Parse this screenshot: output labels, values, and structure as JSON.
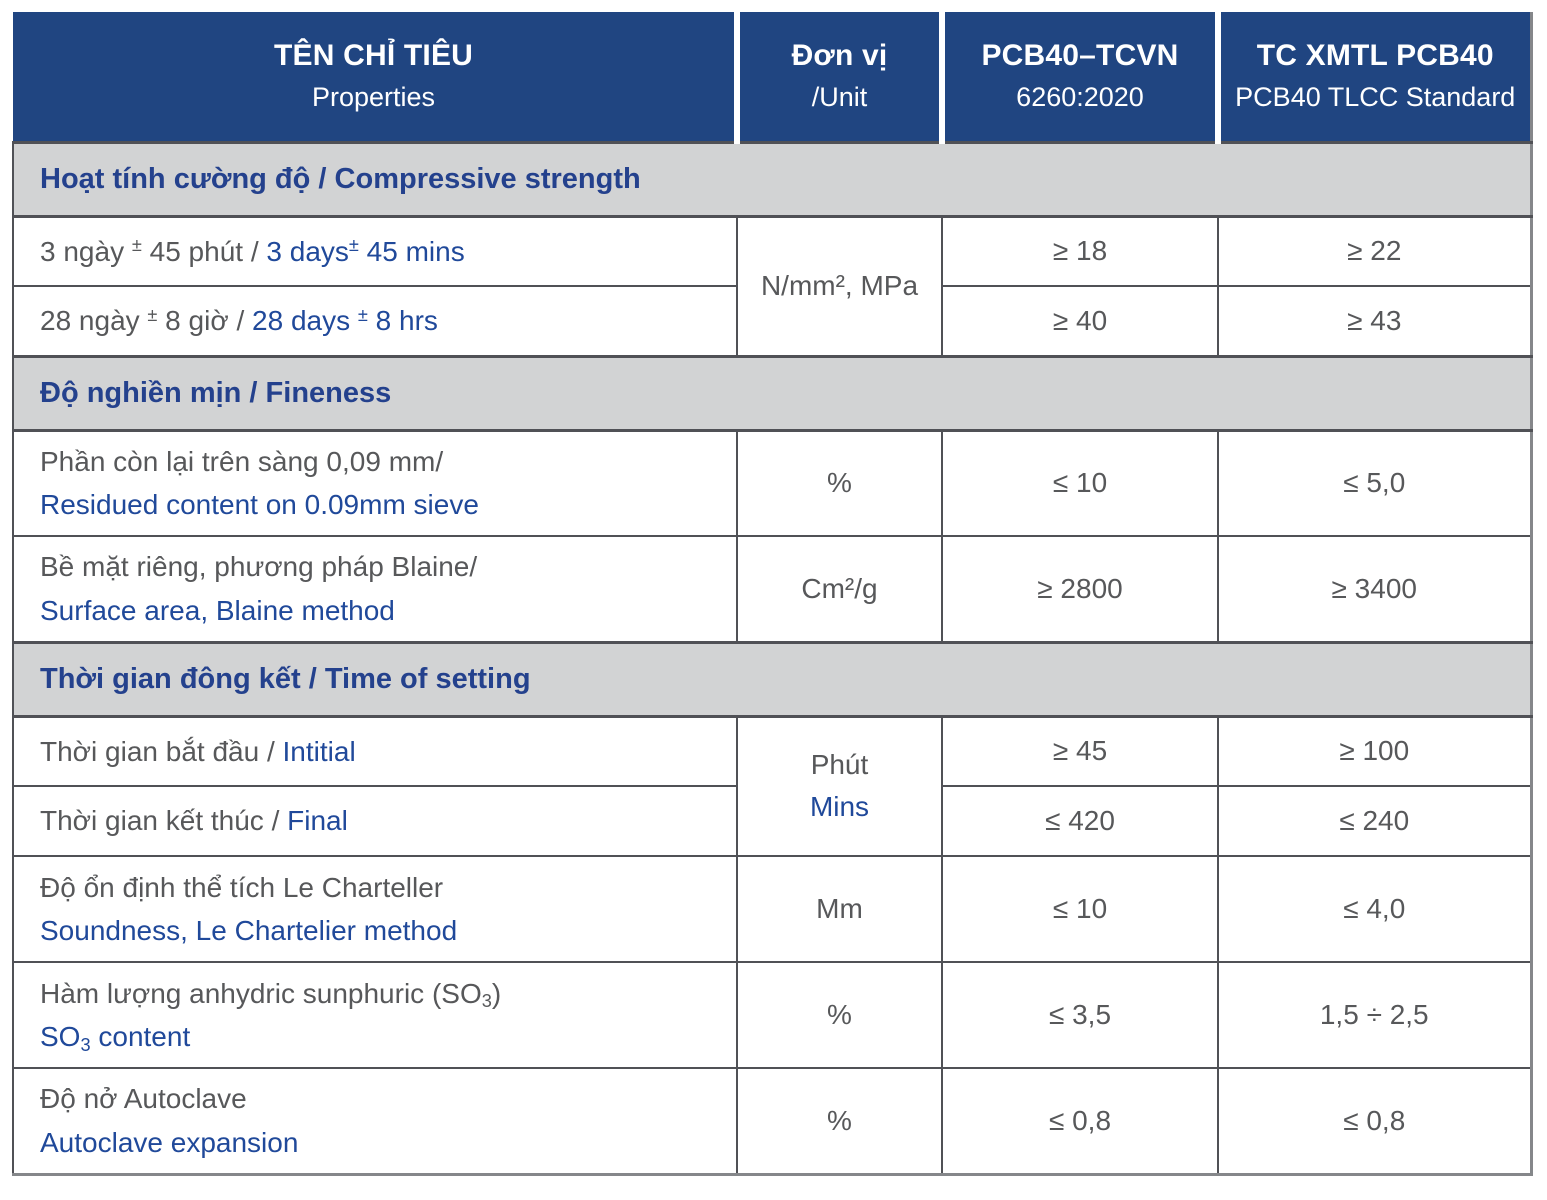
{
  "colors": {
    "header_bg": "#204581",
    "section_bg": "#d2d3d4",
    "section_text": "#24418d",
    "text_gray": "#57585a",
    "text_blue": "#20499a",
    "border_dark": "#505156",
    "border_outer": "#85878a"
  },
  "table": {
    "header": [
      {
        "line1": "TÊN CHỈ TIÊU",
        "line2": "Properties"
      },
      {
        "line1": "Đơn vị",
        "line2": "/Unit"
      },
      {
        "line1": "PCB40–TCVN",
        "line2": "6260:2020"
      },
      {
        "line1": "TC XMTL PCB40",
        "line2": "PCB40 TLCC Standard"
      }
    ],
    "rows": [
      {
        "type": "section",
        "label": "Hoạt tính cường độ /  Compressive strength"
      },
      {
        "type": "property",
        "property": [
          {
            "t": "3 ngày ",
            "s": "vi"
          },
          {
            "t": "±",
            "s": "vi",
            "sup": true
          },
          {
            "t": " 45 phút / ",
            "s": "vi"
          },
          {
            "t": "3 days",
            "s": "en"
          },
          {
            "t": "±",
            "s": "en",
            "sup": true
          },
          {
            "t": " 45 mins",
            "s": "en"
          }
        ],
        "unit": [
          {
            "t": "N/mm², MPa",
            "s": "vi"
          }
        ],
        "unit_rowspan": 2,
        "tcvn": "≥ 18",
        "tlcc": "≥ 22"
      },
      {
        "type": "property",
        "property": [
          {
            "t": "28 ngày ",
            "s": "vi"
          },
          {
            "t": "±",
            "s": "vi",
            "sup": true
          },
          {
            "t": "  8 giờ / ",
            "s": "vi"
          },
          {
            "t": "28 days ",
            "s": "en"
          },
          {
            "t": "±",
            "s": "en",
            "sup": true
          },
          {
            "t": " 8 hrs",
            "s": "en"
          }
        ],
        "tcvn": "≥ 40",
        "tlcc": "≥ 43"
      },
      {
        "type": "section",
        "label": "Độ nghiền mịn / Fineness"
      },
      {
        "type": "property",
        "property": [
          {
            "t": "Phần còn lại trên sàng 0,09 mm/",
            "s": "vi"
          },
          {
            "br": true
          },
          {
            "t": "Residued content on 0.09mm sieve",
            "s": "en"
          }
        ],
        "unit": [
          {
            "t": "%",
            "s": "vi"
          }
        ],
        "tcvn": "≤ 10",
        "tlcc": "≤ 5,0"
      },
      {
        "type": "property",
        "property": [
          {
            "t": "Bề mặt riêng, phương pháp Blaine/",
            "s": "vi"
          },
          {
            "br": true
          },
          {
            "t": "Surface area, Blaine method",
            "s": "en"
          }
        ],
        "unit": [
          {
            "t": "Cm²/g",
            "s": "vi"
          }
        ],
        "tcvn": "≥ 2800",
        "tlcc": "≥ 3400"
      },
      {
        "type": "section",
        "label": "Thời gian đông kết / Time of setting"
      },
      {
        "type": "property",
        "property": [
          {
            "t": "Thời gian bắt đầu / ",
            "s": "vi"
          },
          {
            "t": "Intitial",
            "s": "en"
          }
        ],
        "unit": [
          {
            "t": "Phút",
            "s": "vi"
          },
          {
            "br": true
          },
          {
            "t": "Mins",
            "s": "en"
          }
        ],
        "unit_rowspan": 2,
        "tcvn": "≥ 45",
        "tlcc": "≥ 100"
      },
      {
        "type": "property",
        "property": [
          {
            "t": "Thời gian kết thúc / ",
            "s": "vi"
          },
          {
            "t": "Final",
            "s": "en"
          }
        ],
        "tcvn": "≤ 420",
        "tlcc": "≤ 240"
      },
      {
        "type": "property",
        "property": [
          {
            "t": "Độ ổn định thể tích Le Charteller",
            "s": "vi"
          },
          {
            "br": true
          },
          {
            "t": "Soundness, Le Chartelier method",
            "s": "en"
          }
        ],
        "unit": [
          {
            "t": "Mm",
            "s": "vi"
          }
        ],
        "tcvn": "≤ 10",
        "tlcc": "≤ 4,0"
      },
      {
        "type": "property",
        "property": [
          {
            "t": "Hàm lượng anhydric sunphuric (SO",
            "s": "vi"
          },
          {
            "t": "3",
            "s": "vi",
            "sub": true
          },
          {
            "t": ")",
            "s": "vi"
          },
          {
            "br": true
          },
          {
            "t": "SO",
            "s": "en"
          },
          {
            "t": "3",
            "s": "en",
            "sub": true
          },
          {
            "t": " content",
            "s": "en"
          }
        ],
        "unit": [
          {
            "t": "%",
            "s": "vi"
          }
        ],
        "tcvn": "≤ 3,5",
        "tlcc": "1,5 ÷ 2,5"
      },
      {
        "type": "property",
        "property": [
          {
            "t": "Độ nở Autoclave",
            "s": "vi"
          },
          {
            "br": true
          },
          {
            "t": "Autoclave expansion",
            "s": "en"
          }
        ],
        "unit": [
          {
            "t": "%",
            "s": "vi"
          }
        ],
        "tcvn": "≤ 0,8",
        "tlcc": "≤ 0,8"
      }
    ]
  }
}
